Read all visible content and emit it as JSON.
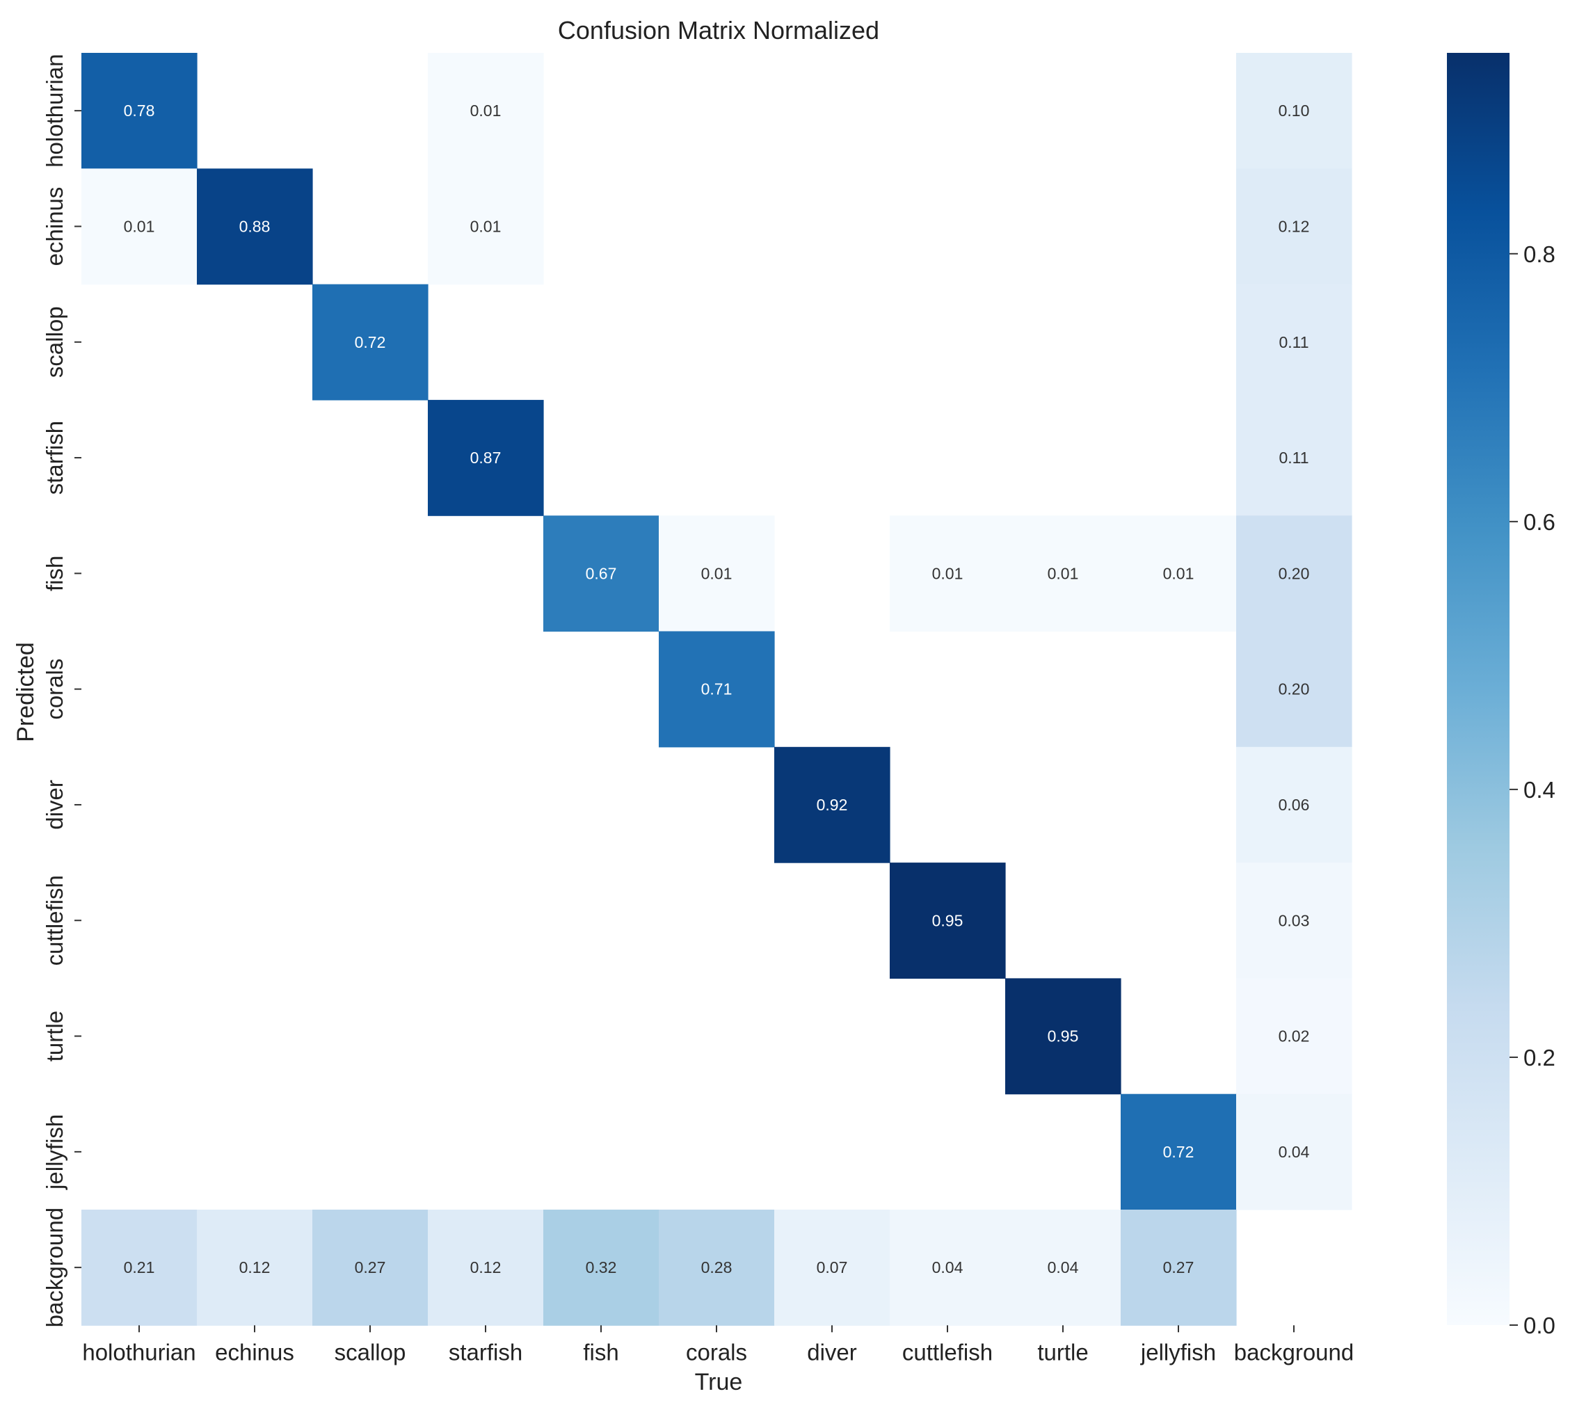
{
  "chart_data": {
    "type": "heatmap",
    "title": "Confusion Matrix Normalized",
    "xlabel": "True",
    "ylabel": "Predicted",
    "x_categories": [
      "holothurian",
      "echinus",
      "scallop",
      "starfish",
      "fish",
      "corals",
      "diver",
      "cuttlefish",
      "turtle",
      "jellyfish",
      "background"
    ],
    "y_categories": [
      "holothurian",
      "echinus",
      "scallop",
      "starfish",
      "fish",
      "corals",
      "diver",
      "cuttlefish",
      "turtle",
      "jellyfish",
      "background"
    ],
    "values": [
      [
        0.78,
        null,
        null,
        0.01,
        null,
        null,
        null,
        null,
        null,
        null,
        0.1
      ],
      [
        0.01,
        0.88,
        null,
        0.01,
        null,
        null,
        null,
        null,
        null,
        null,
        0.12
      ],
      [
        null,
        null,
        0.72,
        null,
        null,
        null,
        null,
        null,
        null,
        null,
        0.11
      ],
      [
        null,
        null,
        null,
        0.87,
        null,
        null,
        null,
        null,
        null,
        null,
        0.11
      ],
      [
        null,
        null,
        null,
        null,
        0.67,
        0.01,
        null,
        0.01,
        0.01,
        0.01,
        0.2
      ],
      [
        null,
        null,
        null,
        null,
        null,
        0.71,
        null,
        null,
        null,
        null,
        0.2
      ],
      [
        null,
        null,
        null,
        null,
        null,
        null,
        0.92,
        null,
        null,
        null,
        0.06
      ],
      [
        null,
        null,
        null,
        null,
        null,
        null,
        null,
        0.95,
        null,
        null,
        0.03
      ],
      [
        null,
        null,
        null,
        null,
        null,
        null,
        null,
        null,
        0.95,
        null,
        0.02
      ],
      [
        null,
        null,
        null,
        null,
        null,
        null,
        null,
        null,
        null,
        0.72,
        0.04
      ],
      [
        0.21,
        0.12,
        0.27,
        0.12,
        0.32,
        0.28,
        0.07,
        0.04,
        0.04,
        0.27,
        null
      ]
    ],
    "colormap": "Blues",
    "colorbar": {
      "range": [
        0.0,
        0.95
      ],
      "ticks": [
        0.0,
        0.2,
        0.4,
        0.6,
        0.8
      ],
      "tick_labels": [
        "0.0",
        "0.2",
        "0.4",
        "0.6",
        "0.8"
      ]
    }
  }
}
